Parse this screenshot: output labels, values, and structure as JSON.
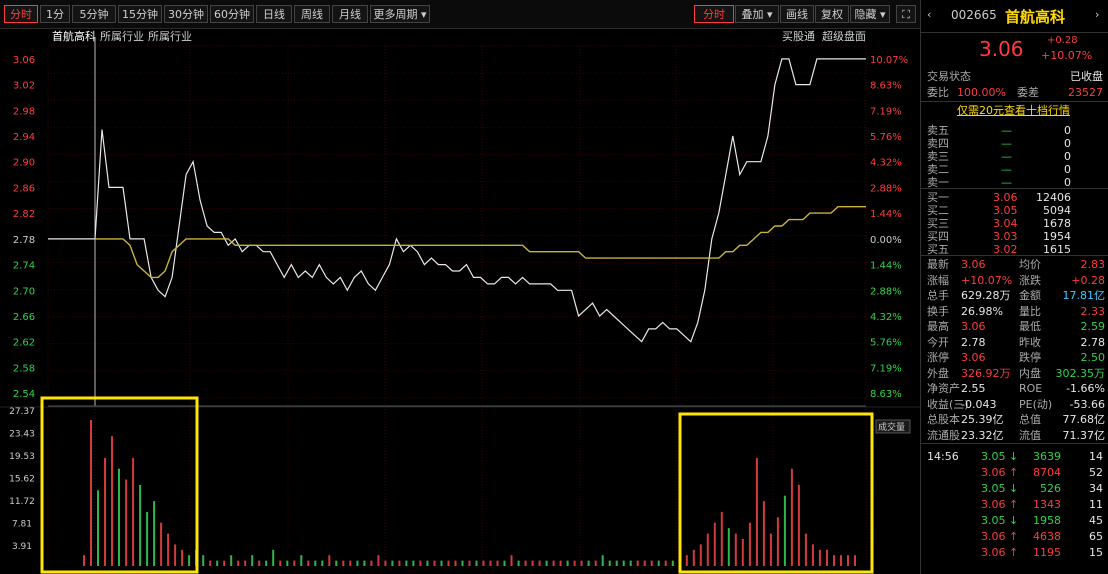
{
  "toolbar": {
    "period_tabs": [
      {
        "label": "分时",
        "active": true
      },
      {
        "label": "1分"
      },
      {
        "label": "5分钟"
      },
      {
        "label": "15分钟"
      },
      {
        "label": "30分钟"
      },
      {
        "label": "60分钟"
      },
      {
        "label": "日线"
      },
      {
        "label": "周线"
      },
      {
        "label": "月线"
      },
      {
        "label": "更多周期 ▾"
      }
    ],
    "right_buttons": [
      {
        "label": "分时",
        "active": true
      },
      {
        "label": "叠加 ▾"
      },
      {
        "label": "画线"
      },
      {
        "label": "复权"
      },
      {
        "label": "隐藏 ▾"
      }
    ],
    "fullscreen_icon": "⛶"
  },
  "chart_header": {
    "name": "首航高科",
    "legend": [
      "所属行业",
      "所属行业"
    ],
    "right_labels": [
      "买股通",
      "超级盘面"
    ],
    "volume_tag": "成交量"
  },
  "chart_data": {
    "type": "line",
    "prev_close": 2.78,
    "price_axis_ticks": [
      "3.06",
      "3.02",
      "2.98",
      "2.94",
      "2.90",
      "2.86",
      "2.82",
      "2.78",
      "2.74",
      "2.70",
      "2.66",
      "2.62",
      "2.58",
      "2.54"
    ],
    "pct_axis_ticks": [
      "10.07%",
      "8.63%",
      "7.19%",
      "5.76%",
      "4.32%",
      "2.88%",
      "1.44%",
      "0.00%",
      "1.44%",
      "2.88%",
      "4.32%",
      "5.76%",
      "7.19%",
      "8.63%"
    ],
    "volume_axis_ticks": [
      "27.37",
      "23.43",
      "19.53",
      "15.62",
      "11.72",
      "7.81",
      "3.91"
    ],
    "ylim": [
      2.52,
      3.08
    ],
    "price": [
      2.78,
      2.95,
      2.86,
      2.86,
      2.86,
      2.78,
      2.78,
      2.78,
      2.72,
      2.7,
      2.69,
      2.72,
      2.8,
      2.88,
      2.9,
      2.84,
      2.8,
      2.79,
      2.79,
      2.77,
      2.78,
      2.76,
      2.77,
      2.77,
      2.76,
      2.76,
      2.74,
      2.72,
      2.74,
      2.72,
      2.73,
      2.72,
      2.74,
      2.72,
      2.71,
      2.72,
      2.7,
      2.72,
      2.73,
      2.71,
      2.7,
      2.72,
      2.74,
      2.78,
      2.76,
      2.77,
      2.76,
      2.74,
      2.75,
      2.74,
      2.74,
      2.73,
      2.73,
      2.74,
      2.72,
      2.72,
      2.71,
      2.71,
      2.72,
      2.72,
      2.71,
      2.72,
      2.71,
      2.71,
      2.71,
      2.71,
      2.7,
      2.7,
      2.7,
      2.66,
      2.67,
      2.68,
      2.66,
      2.67,
      2.66,
      2.65,
      2.64,
      2.63,
      2.62,
      2.64,
      2.64,
      2.65,
      2.64,
      2.64,
      2.63,
      2.62,
      2.65,
      2.7,
      2.78,
      2.82,
      2.88,
      2.94,
      2.88,
      2.9,
      2.9,
      2.9,
      2.94,
      3.02,
      3.06,
      3.06,
      3.02,
      3.02,
      3.02,
      3.06,
      3.06,
      3.06,
      3.06,
      3.06,
      3.06,
      3.06,
      3.06
    ],
    "avg": [
      2.78,
      2.78,
      2.78,
      2.78,
      2.78,
      2.77,
      2.74,
      2.73,
      2.72,
      2.72,
      2.73,
      2.76,
      2.77,
      2.78,
      2.78,
      2.78,
      2.78,
      2.78,
      2.78,
      2.78,
      2.77,
      2.77,
      2.77,
      2.77,
      2.77,
      2.77,
      2.77,
      2.77,
      2.77,
      2.77,
      2.77,
      2.77,
      2.77,
      2.77,
      2.77,
      2.77,
      2.77,
      2.77,
      2.77,
      2.77,
      2.77,
      2.77,
      2.77,
      2.77,
      2.77,
      2.77,
      2.77,
      2.77,
      2.77,
      2.77,
      2.77,
      2.77,
      2.77,
      2.77,
      2.77,
      2.77,
      2.77,
      2.77,
      2.77,
      2.77,
      2.77,
      2.77,
      2.76,
      2.76,
      2.76,
      2.76,
      2.76,
      2.76,
      2.76,
      2.76,
      2.75,
      2.75,
      2.75,
      2.75,
      2.75,
      2.75,
      2.75,
      2.75,
      2.75,
      2.75,
      2.75,
      2.75,
      2.75,
      2.75,
      2.75,
      2.75,
      2.75,
      2.75,
      2.75,
      2.75,
      2.76,
      2.76,
      2.77,
      2.77,
      2.78,
      2.79,
      2.79,
      2.8,
      2.8,
      2.81,
      2.81,
      2.81,
      2.82,
      2.82,
      2.82,
      2.82,
      2.83,
      2.83,
      2.83,
      2.83,
      2.83
    ],
    "volume_max": 27.37,
    "volume": [
      2,
      27,
      14,
      20,
      24,
      18,
      16,
      20,
      15,
      10,
      12,
      8,
      6,
      4,
      3,
      2,
      3,
      2,
      1,
      1,
      1,
      2,
      1,
      1,
      2,
      1,
      1,
      3,
      1,
      1,
      1,
      2,
      1,
      1,
      1,
      2,
      1,
      1,
      1,
      1,
      1,
      1,
      2,
      1,
      1,
      1,
      1,
      1,
      1,
      1,
      1,
      1,
      1,
      1,
      1,
      1,
      1,
      1,
      1,
      1,
      1,
      2,
      1,
      1,
      1,
      1,
      1,
      1,
      1,
      1,
      1,
      1,
      1,
      1,
      2,
      1,
      1,
      1,
      1,
      1,
      1,
      1,
      1,
      1,
      1,
      1,
      2,
      3,
      4,
      6,
      8,
      10,
      7,
      6,
      5,
      8,
      20,
      12,
      6,
      9,
      13,
      18,
      15,
      6,
      4,
      3,
      3,
      2,
      2,
      2,
      2
    ]
  },
  "highlight_color": "#ffe600",
  "stock": {
    "code": "002665",
    "name": "首航高科",
    "price": "3.06",
    "change": "+0.28",
    "change_pct": "+10.07%",
    "status_label": "交易状态",
    "status_value": "已收盘",
    "weibi_label": "委比",
    "weibi_value": "100.00%",
    "weicha_label": "委差",
    "weicha_value": "23527",
    "banner": "仅需20元查看十档行情",
    "sell": [
      {
        "label": "卖五",
        "price": "—",
        "vol": "0"
      },
      {
        "label": "卖四",
        "price": "—",
        "vol": "0"
      },
      {
        "label": "卖三",
        "price": "—",
        "vol": "0"
      },
      {
        "label": "卖二",
        "price": "—",
        "vol": "0"
      },
      {
        "label": "卖一",
        "price": "—",
        "vol": "0"
      }
    ],
    "buy": [
      {
        "label": "买一",
        "price": "3.06",
        "vol": "12406"
      },
      {
        "label": "买二",
        "price": "3.05",
        "vol": "5094"
      },
      {
        "label": "买三",
        "price": "3.04",
        "vol": "1678"
      },
      {
        "label": "买四",
        "price": "3.03",
        "vol": "1954"
      },
      {
        "label": "买五",
        "price": "3.02",
        "vol": "1615"
      }
    ],
    "quotes": [
      [
        "最新",
        "3.06",
        "red",
        "均价",
        "2.83",
        "red"
      ],
      [
        "涨幅",
        "+10.07%",
        "red",
        "涨跌",
        "+0.28",
        "red"
      ],
      [
        "总手",
        "629.28万",
        "white",
        "金额",
        "17.81亿",
        "cyan"
      ],
      [
        "换手",
        "26.98%",
        "white",
        "量比",
        "2.33",
        "red"
      ],
      [
        "最高",
        "3.06",
        "red",
        "最低",
        "2.59",
        "green"
      ],
      [
        "今开",
        "2.78",
        "white",
        "昨收",
        "2.78",
        "white"
      ],
      [
        "涨停",
        "3.06",
        "red",
        "跌停",
        "2.50",
        "green"
      ],
      [
        "外盘",
        "326.92万",
        "red",
        "内盘",
        "302.35万",
        "green"
      ],
      [
        "净资产",
        "2.55",
        "white",
        "ROE",
        "-1.66%",
        "white"
      ],
      [
        "收益(三)",
        "-0.043",
        "white",
        "PE(动)",
        "-53.66",
        "white"
      ],
      [
        "总股本",
        "25.39亿",
        "white",
        "总值",
        "77.68亿",
        "white"
      ],
      [
        "流通股",
        "23.32亿",
        "white",
        "流值",
        "71.37亿",
        "white"
      ]
    ],
    "trades": [
      [
        "14:56",
        "3.05",
        "3639",
        "14",
        "green"
      ],
      [
        "",
        "3.06",
        "8704",
        "52",
        "red"
      ],
      [
        "",
        "3.05",
        "526",
        "34",
        "green"
      ],
      [
        "",
        "3.06",
        "1343",
        "11",
        "red"
      ],
      [
        "",
        "3.05",
        "1958",
        "45",
        "green"
      ],
      [
        "",
        "3.06",
        "4638",
        "65",
        "red"
      ],
      [
        "",
        "3.06",
        "1195",
        "15",
        "red"
      ]
    ]
  }
}
